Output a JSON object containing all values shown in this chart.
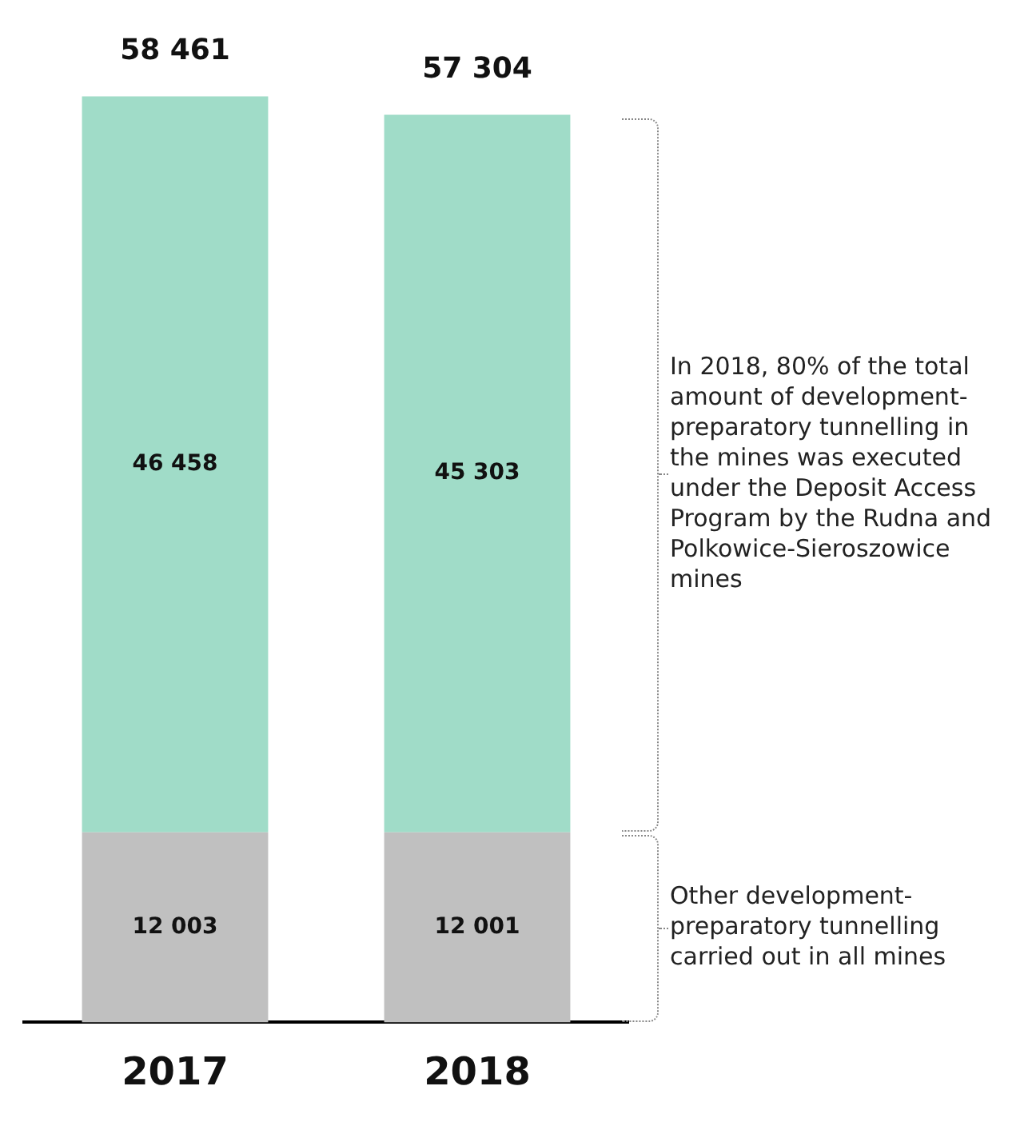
{
  "chart_data": {
    "type": "bar",
    "stacked": true,
    "categories": [
      "2017",
      "2018"
    ],
    "series": [
      {
        "color": "#c0c0c0",
        "values": [
          12003,
          12001
        ],
        "value_labels": [
          "12 003",
          "12 001"
        ]
      },
      {
        "color": "#a0dcc8",
        "values": [
          46458,
          45303
        ],
        "value_labels": [
          "46 458",
          "45 303"
        ]
      }
    ],
    "totals": [
      "58 461",
      "57 304"
    ],
    "annotations": [
      "Other development-preparatory tunnelling carried out in all mines",
      "In 2018, 80% of the total amount of development-preparatory tunnelling in the mines was executed under the Deposit Access Program by the Rudna and Polkowice-Sieroszowice mines"
    ],
    "grid": false,
    "legend": false
  }
}
